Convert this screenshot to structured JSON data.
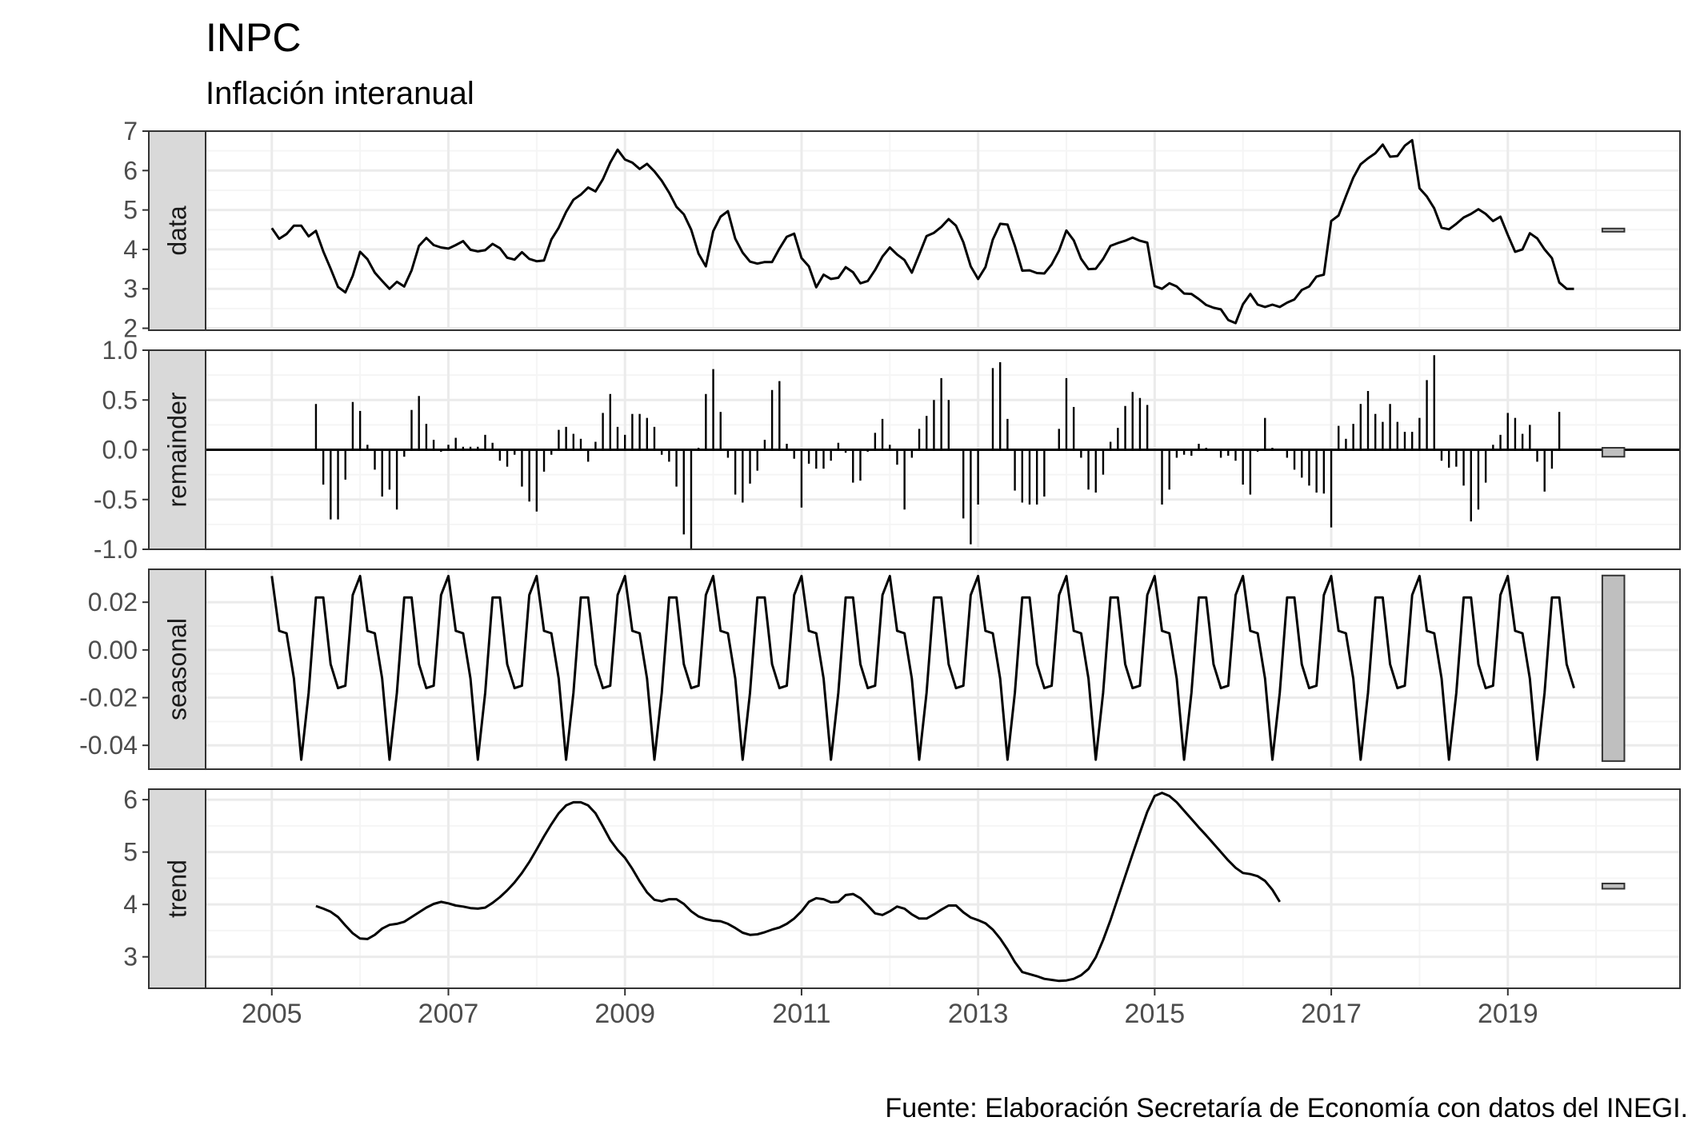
{
  "title": "INPC",
  "subtitle": "Inflación interanual",
  "caption": "Fuente: Elaboración Secretaría de Economía con datos del INEGI.",
  "colors": {
    "line": "#000000",
    "grid_major": "#ebebeb",
    "grid_minor": "#f5f5f5",
    "strip_fill": "#d9d9d9",
    "panel_border": "#333333",
    "range_bar_fill": "#bfbfbf"
  },
  "chart_data": {
    "type": "line",
    "layout": "stl-decomposition",
    "x_start": 2005.0,
    "x_step": 0.08333,
    "xlim": [
      2004.25,
      2020.95
    ],
    "x_ticks": [
      2005,
      2007,
      2009,
      2011,
      2013,
      2015,
      2017,
      2019
    ],
    "x_tick_labels": [
      "2005",
      "2007",
      "2009",
      "2011",
      "2013",
      "2015",
      "2017",
      "2019"
    ],
    "panels": [
      {
        "name": "data",
        "strip_label": "data",
        "ylim": [
          1.95,
          7.0
        ],
        "y_ticks": [
          2,
          3,
          4,
          5,
          6,
          7
        ],
        "y_tick_labels": [
          "2",
          "3",
          "4",
          "5",
          "6",
          "7"
        ],
        "range_bar": [
          4.45,
          4.53
        ],
        "style": "line",
        "offset_months": 0,
        "values": [
          4.54,
          4.27,
          4.39,
          4.6,
          4.6,
          4.33,
          4.47,
          3.95,
          3.51,
          3.05,
          2.91,
          3.33,
          3.94,
          3.75,
          3.41,
          3.2,
          3.0,
          3.18,
          3.06,
          3.47,
          4.09,
          4.29,
          4.11,
          4.05,
          4.02,
          4.11,
          4.21,
          3.99,
          3.95,
          3.98,
          4.14,
          4.03,
          3.79,
          3.74,
          3.93,
          3.76,
          3.7,
          3.72,
          4.25,
          4.55,
          4.95,
          5.26,
          5.39,
          5.57,
          5.47,
          5.78,
          6.2,
          6.53,
          6.28,
          6.2,
          6.04,
          6.17,
          5.98,
          5.74,
          5.44,
          5.08,
          4.89,
          4.5,
          3.89,
          3.57,
          4.46,
          4.83,
          4.97,
          4.27,
          3.92,
          3.69,
          3.64,
          3.68,
          3.68,
          4.02,
          4.32,
          4.4,
          3.78,
          3.57,
          3.04,
          3.36,
          3.25,
          3.28,
          3.55,
          3.42,
          3.14,
          3.2,
          3.48,
          3.82,
          4.05,
          3.87,
          3.73,
          3.41,
          3.87,
          4.34,
          4.42,
          4.57,
          4.77,
          4.6,
          4.18,
          3.57,
          3.25,
          3.55,
          4.25,
          4.65,
          4.63,
          4.09,
          3.46,
          3.47,
          3.4,
          3.39,
          3.62,
          3.97,
          4.48,
          4.23,
          3.76,
          3.5,
          3.51,
          3.76,
          4.09,
          4.16,
          4.22,
          4.3,
          4.22,
          4.17,
          3.07,
          3.0,
          3.14,
          3.06,
          2.88,
          2.87,
          2.74,
          2.59,
          2.52,
          2.48,
          2.21,
          2.13,
          2.61,
          2.87,
          2.6,
          2.54,
          2.6,
          2.54,
          2.65,
          2.73,
          2.97,
          3.06,
          3.31,
          3.36,
          4.72,
          4.86,
          5.35,
          5.82,
          6.16,
          6.31,
          6.44,
          6.66,
          6.35,
          6.37,
          6.63,
          6.77,
          5.55,
          5.34,
          5.04,
          4.55,
          4.51,
          4.65,
          4.81,
          4.9,
          5.02,
          4.9,
          4.72,
          4.83,
          4.37,
          3.94,
          4.0,
          4.41,
          4.28,
          4.0,
          3.78,
          3.16,
          3.0,
          3.0
        ]
      },
      {
        "name": "remainder",
        "strip_label": "remainder",
        "ylim": [
          -1.0,
          1.0
        ],
        "y_ticks": [
          -1.0,
          -0.5,
          0.0,
          0.5,
          1.0
        ],
        "y_tick_labels": [
          "-1.0",
          "-0.5",
          "0.0",
          "0.5",
          "1.0"
        ],
        "range_bar": [
          -0.07,
          0.02
        ],
        "style": "bars",
        "offset_months": 6,
        "values": [
          0.46,
          -0.35,
          -0.7,
          -0.7,
          -0.3,
          0.48,
          0.39,
          0.05,
          -0.2,
          -0.47,
          -0.4,
          -0.6,
          -0.07,
          0.4,
          0.54,
          0.26,
          0.1,
          -0.02,
          0.05,
          0.12,
          0.03,
          0.03,
          0.03,
          0.15,
          0.07,
          -0.11,
          -0.17,
          -0.05,
          -0.37,
          -0.52,
          -0.62,
          -0.22,
          -0.05,
          0.2,
          0.23,
          0.16,
          0.11,
          -0.12,
          0.08,
          0.37,
          0.56,
          0.23,
          0.15,
          0.36,
          0.36,
          0.32,
          0.23,
          -0.05,
          -0.12,
          -0.37,
          -0.85,
          -1.0,
          0.02,
          0.56,
          0.81,
          0.38,
          -0.08,
          -0.45,
          -0.53,
          -0.34,
          -0.21,
          0.1,
          0.6,
          0.69,
          0.06,
          -0.09,
          -0.58,
          -0.14,
          -0.19,
          -0.19,
          -0.11,
          0.07,
          -0.03,
          -0.33,
          -0.31,
          -0.02,
          0.17,
          0.31,
          0.05,
          -0.15,
          -0.6,
          -0.08,
          0.21,
          0.34,
          0.5,
          0.72,
          0.5,
          0.0,
          -0.69,
          -0.95,
          -0.55,
          0.0,
          0.82,
          0.88,
          0.31,
          -0.41,
          -0.53,
          -0.55,
          -0.55,
          -0.47,
          0.0,
          0.21,
          0.72,
          0.43,
          -0.08,
          -0.4,
          -0.43,
          -0.25,
          0.08,
          0.22,
          0.44,
          0.58,
          0.52,
          0.45,
          0.0,
          -0.55,
          -0.4,
          -0.08,
          -0.05,
          -0.06,
          0.06,
          0.02,
          0.0,
          -0.08,
          -0.06,
          -0.11,
          -0.35,
          -0.45,
          -0.02,
          0.32,
          0.02,
          -0.01,
          -0.08,
          -0.2,
          -0.28,
          -0.36,
          -0.43,
          -0.44,
          -0.78,
          0.24,
          0.11,
          0.26,
          0.46,
          0.59,
          0.36,
          0.28,
          0.46,
          0.28,
          0.18,
          0.18,
          0.32,
          0.7,
          0.95,
          -0.11,
          -0.18,
          -0.17,
          -0.36,
          -0.72,
          -0.6,
          -0.33,
          0.05,
          0.15,
          0.37,
          0.32,
          0.16,
          0.25,
          -0.12,
          -0.42,
          -0.19,
          0.38
        ]
      },
      {
        "name": "seasonal",
        "strip_label": "seasonal",
        "ylim": [
          -0.05,
          0.0338
        ],
        "y_ticks": [
          -0.04,
          -0.02,
          0.0,
          0.02
        ],
        "y_tick_labels": [
          "-0.04",
          "-0.02",
          "0.00",
          "0.02"
        ],
        "range_bar": [
          -0.0466,
          0.0312
        ],
        "style": "line",
        "offset_months": 0,
        "values": [
          0.031,
          0.008,
          0.007,
          -0.012,
          -0.046,
          -0.018,
          0.022,
          0.022,
          -0.006,
          -0.016,
          -0.015,
          0.023,
          0.031,
          0.008,
          0.007,
          -0.012,
          -0.046,
          -0.018,
          0.022,
          0.022,
          -0.006,
          -0.016,
          -0.015,
          0.023,
          0.031,
          0.008,
          0.007,
          -0.012,
          -0.046,
          -0.018,
          0.022,
          0.022,
          -0.006,
          -0.016,
          -0.015,
          0.023,
          0.031,
          0.008,
          0.007,
          -0.012,
          -0.046,
          -0.018,
          0.022,
          0.022,
          -0.006,
          -0.016,
          -0.015,
          0.023,
          0.031,
          0.008,
          0.007,
          -0.012,
          -0.046,
          -0.018,
          0.022,
          0.022,
          -0.006,
          -0.016,
          -0.015,
          0.023,
          0.031,
          0.008,
          0.007,
          -0.012,
          -0.046,
          -0.018,
          0.022,
          0.022,
          -0.006,
          -0.016,
          -0.015,
          0.023,
          0.031,
          0.008,
          0.007,
          -0.012,
          -0.046,
          -0.018,
          0.022,
          0.022,
          -0.006,
          -0.016,
          -0.015,
          0.023,
          0.031,
          0.008,
          0.007,
          -0.012,
          -0.046,
          -0.018,
          0.022,
          0.022,
          -0.006,
          -0.016,
          -0.015,
          0.023,
          0.031,
          0.008,
          0.007,
          -0.012,
          -0.046,
          -0.018,
          0.022,
          0.022,
          -0.006,
          -0.016,
          -0.015,
          0.023,
          0.031,
          0.008,
          0.007,
          -0.012,
          -0.046,
          -0.018,
          0.022,
          0.022,
          -0.006,
          -0.016,
          -0.015,
          0.023,
          0.031,
          0.008,
          0.007,
          -0.012,
          -0.046,
          -0.018,
          0.022,
          0.022,
          -0.006,
          -0.016,
          -0.015,
          0.023,
          0.031,
          0.008,
          0.007,
          -0.012,
          -0.046,
          -0.018,
          0.022,
          0.022,
          -0.006,
          -0.016,
          -0.015,
          0.023,
          0.031,
          0.008,
          0.007,
          -0.012,
          -0.046,
          -0.018,
          0.022,
          0.022,
          -0.006,
          -0.016,
          -0.015,
          0.023,
          0.031,
          0.008,
          0.007,
          -0.012,
          -0.046,
          -0.018,
          0.022,
          0.022,
          -0.006,
          -0.016,
          -0.015,
          0.023,
          0.031,
          0.008,
          0.007,
          -0.012,
          -0.046,
          -0.018,
          0.022,
          0.022,
          -0.006,
          -0.016
        ]
      },
      {
        "name": "trend",
        "strip_label": "trend",
        "ylim": [
          2.4,
          6.2
        ],
        "y_ticks": [
          3,
          4,
          5,
          6
        ],
        "y_tick_labels": [
          "3",
          "4",
          "5",
          "6"
        ],
        "range_bar": [
          4.3,
          4.4
        ],
        "style": "line",
        "offset_months": 6,
        "values": [
          3.97,
          3.92,
          3.86,
          3.76,
          3.6,
          3.45,
          3.35,
          3.34,
          3.42,
          3.54,
          3.61,
          3.63,
          3.67,
          3.76,
          3.85,
          3.94,
          4.01,
          4.05,
          4.02,
          3.98,
          3.96,
          3.93,
          3.92,
          3.94,
          4.03,
          4.14,
          4.27,
          4.42,
          4.6,
          4.81,
          5.05,
          5.3,
          5.53,
          5.74,
          5.89,
          5.95,
          5.95,
          5.89,
          5.74,
          5.49,
          5.23,
          5.04,
          4.89,
          4.68,
          4.44,
          4.23,
          4.09,
          4.06,
          4.1,
          4.1,
          4.01,
          3.87,
          3.77,
          3.72,
          3.69,
          3.68,
          3.63,
          3.55,
          3.46,
          3.42,
          3.43,
          3.47,
          3.52,
          3.56,
          3.63,
          3.73,
          3.87,
          4.05,
          4.12,
          4.1,
          4.04,
          4.05,
          4.18,
          4.2,
          4.12,
          3.98,
          3.83,
          3.8,
          3.87,
          3.96,
          3.92,
          3.81,
          3.73,
          3.73,
          3.81,
          3.9,
          3.98,
          3.98,
          3.85,
          3.75,
          3.7,
          3.64,
          3.52,
          3.35,
          3.14,
          2.9,
          2.71,
          2.67,
          2.63,
          2.58,
          2.56,
          2.54,
          2.55,
          2.58,
          2.65,
          2.77,
          2.99,
          3.32,
          3.7,
          4.12,
          4.54,
          4.96,
          5.37,
          5.77,
          6.07,
          6.13,
          6.07,
          5.95,
          5.79,
          5.63,
          5.47,
          5.32,
          5.16,
          5.0,
          4.84,
          4.7,
          4.6,
          4.58,
          4.54,
          4.45,
          4.28,
          4.05
        ]
      }
    ]
  }
}
